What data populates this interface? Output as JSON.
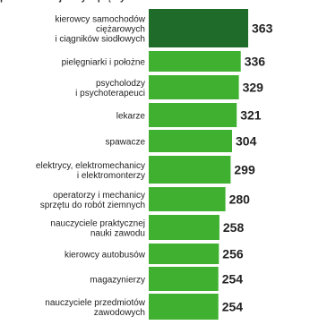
{
  "header": {
    "cut_text": "p... ... ... ...nuj... ...y ...pię...y"
  },
  "chart_data": {
    "type": "bar",
    "orientation": "horizontal",
    "categories": [
      [
        "kierowcy samochodów",
        "ciężarowych",
        "i ciągników siodłowych"
      ],
      [
        "pielęgniarki i położne"
      ],
      [
        "psycholodzy",
        "i psychoterapeuci"
      ],
      [
        "lekarze"
      ],
      [
        "spawacze"
      ],
      [
        "elektrycy, elektromechanicy",
        "i elektromonterzy"
      ],
      [
        "operatorzy i mechanicy",
        "sprzętu do robót ziemnych"
      ],
      [
        "nauczyciele praktycznej",
        "nauki zawodu"
      ],
      [
        "kierowcy autobusów"
      ],
      [
        "magazynierzy"
      ],
      [
        "nauczyciele przedmiotów",
        "zawodowych"
      ]
    ],
    "values": [
      363,
      336,
      329,
      321,
      304,
      299,
      280,
      258,
      256,
      254,
      254
    ],
    "value_labels": [
      "363",
      "336",
      "329",
      "321",
      "304",
      "299",
      "280",
      "258",
      "256",
      "254",
      "254"
    ],
    "highlight_index": 0,
    "colors": {
      "highlight": "#1f6b2a",
      "bar": "#3fb030",
      "text": "#222222"
    }
  }
}
